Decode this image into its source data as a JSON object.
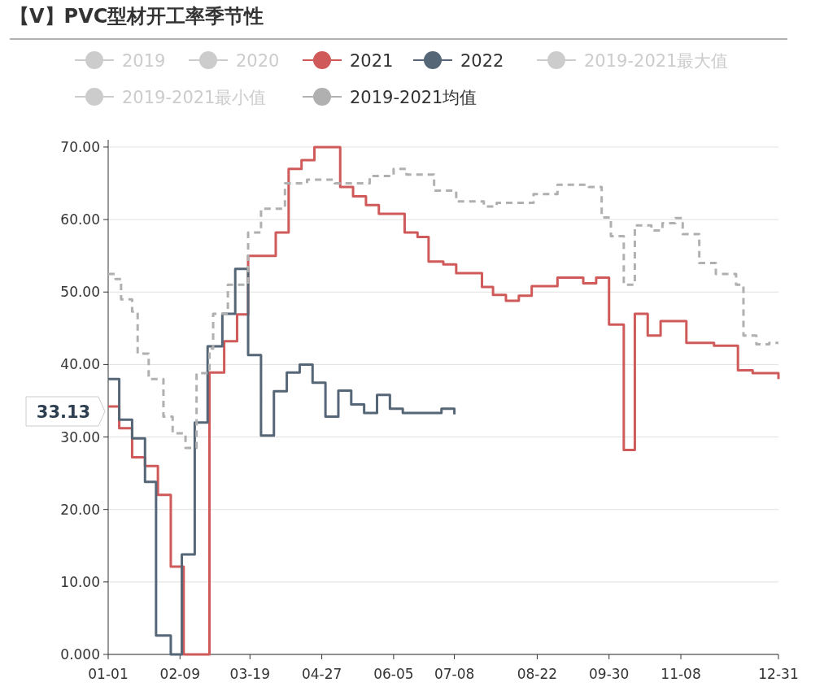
{
  "chart_data": {
    "type": "step",
    "title": "【V】PVC型材开工率季节性",
    "legend": "top",
    "grid": "y",
    "marker": "none",
    "xlim": [
      "--01-01",
      "--12-31"
    ],
    "ylim": [
      0,
      71
    ],
    "xticks": [
      {
        "value": "--01-01",
        "label": "01-01"
      },
      {
        "value": "--02-09",
        "label": "02-09"
      },
      {
        "value": "--03-19",
        "label": "03-19"
      },
      {
        "value": "--04-27",
        "label": "04-27"
      },
      {
        "value": "--06-05",
        "label": "06-05"
      },
      {
        "value": "--07-08",
        "label": "07-08"
      },
      {
        "value": "--08-22",
        "label": "08-22"
      },
      {
        "value": "--09-30",
        "label": "09-30"
      },
      {
        "value": "--11-08",
        "label": "11-08"
      },
      {
        "value": "--12-31",
        "label": "12-31"
      }
    ],
    "yticks": [
      {
        "value": 0,
        "label": "0.000"
      },
      {
        "value": 10,
        "label": "10.00"
      },
      {
        "value": 20,
        "label": "20.00"
      },
      {
        "value": 30,
        "label": "30.00"
      },
      {
        "value": 40,
        "label": "40.00"
      },
      {
        "value": 50,
        "label": "50.00"
      },
      {
        "value": 60,
        "label": "60.00"
      },
      {
        "value": 70,
        "label": "70.00"
      }
    ],
    "annotations": [
      "33.13"
    ],
    "series": [
      {
        "name": "2019",
        "color": "#cccccc"
      },
      {
        "name": "2020",
        "color": "#cccccc"
      },
      {
        "name": "2021",
        "color": "#d05a5a",
        "x": [
          "--01-01",
          "--01-07",
          "--01-14",
          "--01-21",
          "--01-28",
          "--02-04",
          "--02-11",
          "--02-25",
          "--03-05",
          "--03-12",
          "--03-18",
          "--04-02",
          "--04-09",
          "--04-16",
          "--04-23",
          "--05-07",
          "--05-14",
          "--05-21",
          "--05-28",
          "--06-11",
          "--06-18",
          "--06-24",
          "--07-02",
          "--07-09",
          "--07-23",
          "--07-29",
          "--08-05",
          "--08-12",
          "--08-19",
          "--09-02",
          "--09-16",
          "--09-23",
          "--09-30",
          "--10-08",
          "--10-14",
          "--10-21",
          "--10-28",
          "--11-11",
          "--11-26",
          "--12-09",
          "--12-17",
          "--12-30",
          "--12-31"
        ],
        "values": [
          34.2,
          31.2,
          27.2,
          26.0,
          22.0,
          12.1,
          0,
          38.9,
          43.2,
          46.9,
          55.0,
          58.2,
          67.0,
          68.2,
          70.0,
          64.5,
          63.2,
          62.0,
          60.8,
          58.2,
          57.6,
          54.2,
          53.8,
          52.6,
          50.7,
          49.6,
          48.8,
          49.5,
          50.8,
          52.0,
          51.2,
          52.0,
          45.5,
          28.2,
          47.0,
          44.0,
          46.0,
          43.0,
          42.6,
          39.2,
          38.8,
          38.8,
          38.0
        ]
      },
      {
        "name": "2022",
        "color": "#556677",
        "x": [
          "--01-01",
          "--01-07",
          "--01-14",
          "--01-21",
          "--01-27",
          "--02-04",
          "--02-10",
          "--02-17",
          "--02-24",
          "--03-04",
          "--03-11",
          "--03-18",
          "--03-25",
          "--04-01",
          "--04-08",
          "--04-15",
          "--04-22",
          "--04-29",
          "--05-06",
          "--05-13",
          "--05-20",
          "--05-27",
          "--06-03",
          "--06-10",
          "--07-01",
          "--07-08"
        ],
        "values": [
          38.0,
          32.4,
          29.8,
          23.8,
          2.6,
          0,
          13.8,
          32.0,
          42.5,
          47.0,
          53.2,
          41.3,
          30.2,
          36.3,
          38.9,
          40.0,
          37.5,
          32.8,
          36.4,
          34.5,
          33.3,
          35.8,
          33.9,
          33.3,
          33.9,
          33.13
        ]
      },
      {
        "name": "2019-2021最大值",
        "color": "#cccccc"
      },
      {
        "name": "2019-2021最小值",
        "color": "#cccccc"
      },
      {
        "name": "2019-2021均值",
        "color": "#b0b0b0",
        "line_style": "dashed",
        "x": [
          "--01-01",
          "--01-05",
          "--01-08",
          "--01-14",
          "--01-17",
          "--01-23",
          "--01-31",
          "--02-05",
          "--02-12",
          "--02-18",
          "--02-25",
          "--02-27",
          "--03-07",
          "--03-18",
          "--03-25",
          "--04-07",
          "--04-19",
          "--05-04",
          "--05-23",
          "--06-05",
          "--06-12",
          "--06-27",
          "--07-09",
          "--07-24",
          "--07-31",
          "--08-20",
          "--09-02",
          "--09-19",
          "--09-26",
          "--10-01",
          "--10-08",
          "--10-14",
          "--10-23",
          "--10-29",
          "--11-05",
          "--11-09",
          "--11-18",
          "--11-27",
          "--12-08",
          "--12-12",
          "--12-19",
          "--12-26",
          "--12-31"
        ],
        "values": [
          52.5,
          51.8,
          49.0,
          47.3,
          41.5,
          38.0,
          32.8,
          30.5,
          28.5,
          38.8,
          42.2,
          47.0,
          51.0,
          58.2,
          61.5,
          65.0,
          65.5,
          65.0,
          66.0,
          67.0,
          66.2,
          64.0,
          62.5,
          61.8,
          62.3,
          63.5,
          64.8,
          64.5,
          60.3,
          57.7,
          51.0,
          59.2,
          58.5,
          59.5,
          60.2,
          58.0,
          54.0,
          52.5,
          51.0,
          44.0,
          42.8,
          43.0,
          43.0
        ]
      }
    ]
  }
}
